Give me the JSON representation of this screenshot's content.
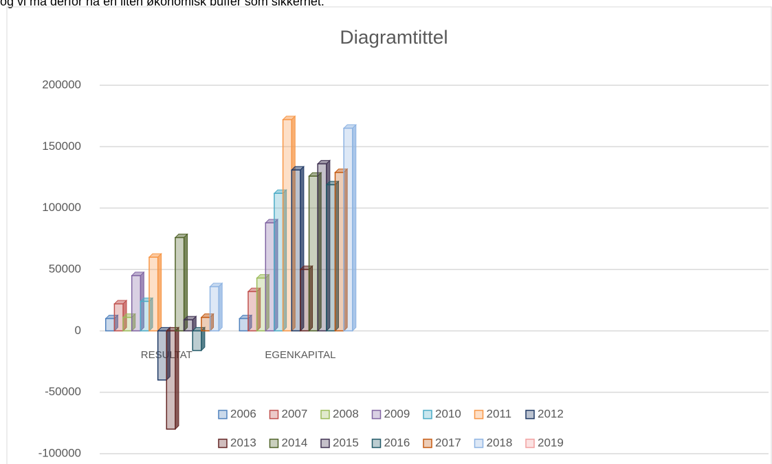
{
  "text": "og vi må derfor ha en liten økonomisk buffer som sikkerhet.",
  "chart_data": {
    "type": "bar",
    "title": "Diagramtittel",
    "categories": [
      "RESULTAT",
      "EGENKAPITAL",
      null,
      null,
      null
    ],
    "ylim": [
      -100000,
      200000
    ],
    "yticks": [
      -100000,
      -50000,
      0,
      50000,
      100000,
      150000,
      200000
    ],
    "grid": true,
    "series": [
      {
        "name": "2006",
        "color": "#4f81bd",
        "values": [
          10000,
          10000,
          null,
          null,
          null
        ]
      },
      {
        "name": "2007",
        "color": "#c0504d",
        "values": [
          22000,
          32000,
          null,
          null,
          null
        ]
      },
      {
        "name": "2008",
        "color": "#9bbb59",
        "values": [
          11000,
          43000,
          null,
          null,
          null
        ]
      },
      {
        "name": "2009",
        "color": "#8064a2",
        "values": [
          45000,
          88000,
          null,
          null,
          null
        ]
      },
      {
        "name": "2010",
        "color": "#4bacc6",
        "values": [
          24000,
          112000,
          null,
          null,
          null
        ]
      },
      {
        "name": "2011",
        "color": "#f79646",
        "values": [
          60000,
          172000,
          null,
          null,
          null
        ]
      },
      {
        "name": "2012",
        "color": "#1f3864",
        "values": [
          -40000,
          131000,
          null,
          null,
          null
        ]
      },
      {
        "name": "2013",
        "color": "#632523",
        "values": [
          -80000,
          50000,
          null,
          null,
          null
        ]
      },
      {
        "name": "2014",
        "color": "#4f6228",
        "values": [
          76000,
          126000,
          null,
          null,
          null
        ]
      },
      {
        "name": "2015",
        "color": "#3f3151",
        "values": [
          9000,
          136000,
          null,
          null,
          null
        ]
      },
      {
        "name": "2016",
        "color": "#205867",
        "values": [
          -16000,
          119000,
          null,
          null,
          null
        ]
      },
      {
        "name": "2017",
        "color": "#c55a11",
        "values": [
          11000,
          129000,
          null,
          null,
          null
        ]
      },
      {
        "name": "2018",
        "color": "#8db3e2",
        "values": [
          36000,
          165000,
          null,
          null,
          null
        ]
      },
      {
        "name": "2019",
        "color": "#f2a0a0",
        "values": [
          null,
          null,
          null,
          null,
          null
        ]
      }
    ]
  }
}
